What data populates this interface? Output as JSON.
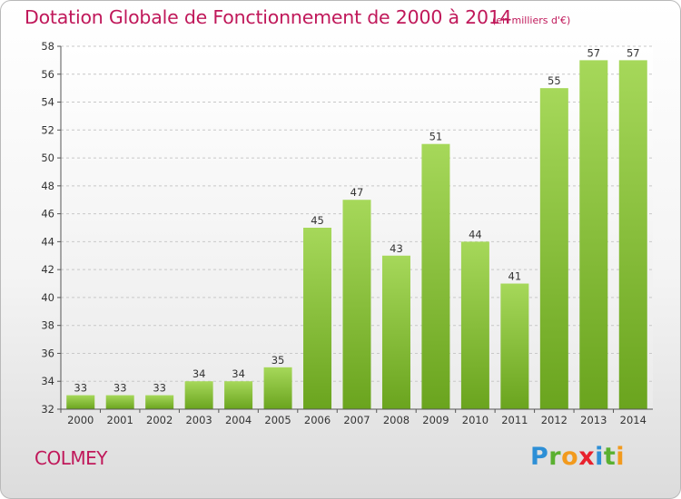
{
  "header": {
    "title": "Dotation Globale de Fonctionnement de 2000 à 2014",
    "subtitle": "(en milliers d'€)"
  },
  "footer": {
    "commune": "COLMEY",
    "logo": {
      "text": "Proxiti",
      "letters": [
        {
          "ch": "P",
          "color": "#2d8fd6"
        },
        {
          "ch": "r",
          "color": "#5ab030"
        },
        {
          "ch": "o",
          "color": "#f29a1d"
        },
        {
          "ch": "x",
          "color": "#e8212d"
        },
        {
          "ch": "i",
          "color": "#2d8fd6"
        },
        {
          "ch": "t",
          "color": "#5ab030"
        },
        {
          "ch": "i",
          "color": "#f29a1d"
        }
      ]
    }
  },
  "chart_data": {
    "type": "bar",
    "categories": [
      "2000",
      "2001",
      "2002",
      "2003",
      "2004",
      "2005",
      "2006",
      "2007",
      "2008",
      "2009",
      "2010",
      "2011",
      "2012",
      "2013",
      "2014"
    ],
    "values": [
      33,
      33,
      33,
      34,
      34,
      35,
      45,
      47,
      43,
      51,
      44,
      41,
      55,
      57,
      57
    ],
    "title": "Dotation Globale de Fonctionnement de 2000 à 2014",
    "subtitle": "(en milliers d'€)",
    "xlabel": "",
    "ylabel": "",
    "ylim": [
      32,
      58
    ],
    "yticks": [
      32,
      34,
      36,
      38,
      40,
      42,
      44,
      46,
      48,
      50,
      52,
      54,
      56,
      58
    ],
    "grid": "horizontal-dashed",
    "legend": "none",
    "colors": {
      "bar_light": "#a6d85a",
      "bar_dark": "#6aa41e",
      "grid": "#c8c8c8",
      "axis": "#555555",
      "text": "#333333"
    }
  }
}
